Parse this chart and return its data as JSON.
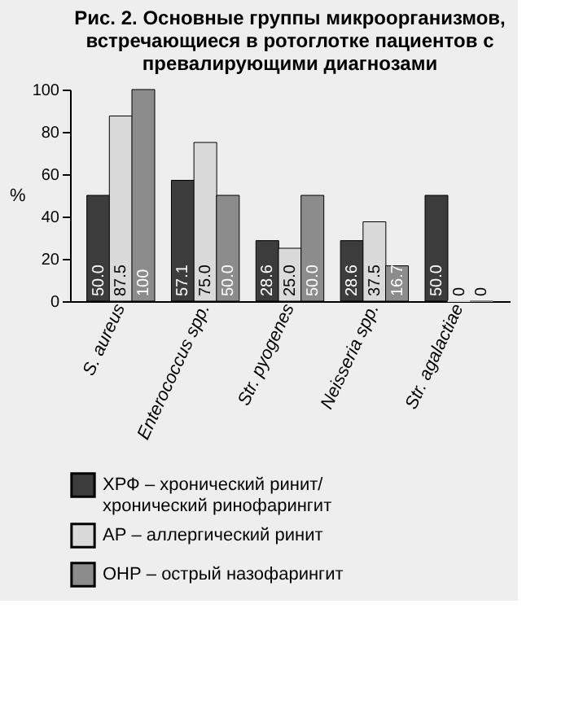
{
  "chart_data": {
    "type": "bar",
    "title": "Рис. 2. Основные группы микроорганизмов, встречающиеся в ротоглотке пациентов с превалирующими диагнозами",
    "categories": [
      "S. aureus",
      "Enterococcus spp.",
      "Str. pyogenes",
      "Neisseria spp.",
      "Str. agalactiae"
    ],
    "series": [
      {
        "name": "ХРФ – хронический ринит/ хронический ринофарингит",
        "color": "#3c3c3c",
        "values": [
          50.0,
          57.1,
          28.6,
          28.6,
          50.0
        ],
        "value_labels": [
          "50.0",
          "57.1",
          "28.6",
          "28.6",
          "50.0"
        ]
      },
      {
        "name": "АР – аллергический ринит",
        "color": "#dadada",
        "values": [
          87.5,
          75.0,
          25.0,
          37.5,
          0
        ],
        "value_labels": [
          "87.5",
          "75.0",
          "25.0",
          "37.5",
          "0"
        ]
      },
      {
        "name": "ОНР – острый назофарингит",
        "color": "#8c8c8c",
        "values": [
          100,
          50.0,
          50.0,
          16.7,
          0
        ],
        "value_labels": [
          "100",
          "50.0",
          "50.0",
          "16.7",
          "0"
        ]
      }
    ],
    "ylabel": "%",
    "ylim": [
      0,
      100
    ],
    "yticks": [
      0,
      20,
      40,
      60,
      80,
      100
    ],
    "grid": false,
    "legend": "bottom"
  }
}
